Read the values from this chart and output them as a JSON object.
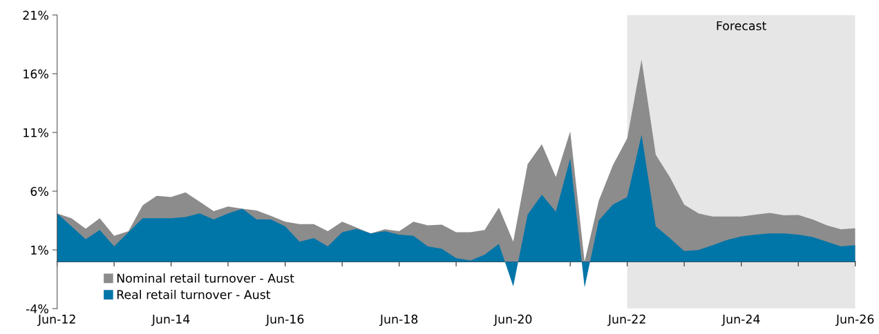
{
  "chart_data": {
    "type": "area",
    "x": [
      "2012-06",
      "2012-09",
      "2012-12",
      "2013-03",
      "2013-06",
      "2013-09",
      "2013-12",
      "2014-03",
      "2014-06",
      "2014-09",
      "2014-12",
      "2015-03",
      "2015-06",
      "2015-09",
      "2015-12",
      "2016-03",
      "2016-06",
      "2016-09",
      "2016-12",
      "2017-03",
      "2017-06",
      "2017-09",
      "2017-12",
      "2018-03",
      "2018-06",
      "2018-09",
      "2018-12",
      "2019-03",
      "2019-06",
      "2019-09",
      "2019-12",
      "2020-03",
      "2020-06",
      "2020-09",
      "2020-12",
      "2021-03",
      "2021-06",
      "2021-09",
      "2021-12",
      "2022-03",
      "2022-06",
      "2022-09",
      "2022-12",
      "2023-03",
      "2023-06",
      "2023-09",
      "2023-12",
      "2024-03",
      "2024-06",
      "2024-09",
      "2024-12",
      "2025-03",
      "2025-06",
      "2025-09",
      "2025-12",
      "2026-03",
      "2026-06"
    ],
    "series": [
      {
        "name": "Nominal retail turnover - Aust",
        "color": "#8c8c8c",
        "values": [
          4.1,
          3.7,
          2.8,
          3.7,
          2.2,
          2.6,
          4.8,
          5.6,
          5.5,
          5.9,
          5.1,
          4.3,
          4.7,
          4.5,
          4.35,
          3.9,
          3.4,
          3.2,
          3.2,
          2.6,
          3.4,
          2.9,
          2.4,
          2.75,
          2.6,
          3.4,
          3.1,
          3.15,
          2.5,
          2.5,
          2.7,
          4.6,
          1.7,
          8.3,
          10.0,
          7.2,
          11.1,
          0.0,
          5.2,
          8.2,
          10.5,
          17.2,
          9.1,
          7.2,
          4.85,
          4.1,
          3.85,
          3.85,
          3.85,
          4.0,
          4.15,
          3.95,
          3.97,
          3.6,
          3.1,
          2.75,
          2.85
        ]
      },
      {
        "name": "Real retail turnover - Aust",
        "color": "#0075a8",
        "values": [
          4.1,
          3.0,
          1.9,
          2.7,
          1.3,
          2.5,
          3.7,
          3.7,
          3.7,
          3.8,
          4.1,
          3.6,
          4.1,
          4.5,
          3.6,
          3.6,
          3.0,
          1.7,
          2.0,
          1.3,
          2.5,
          2.8,
          2.4,
          2.6,
          2.3,
          2.2,
          1.3,
          1.1,
          0.3,
          0.1,
          0.6,
          1.5,
          -2.1,
          4.0,
          5.7,
          4.25,
          8.8,
          -2.2,
          3.5,
          4.85,
          5.5,
          10.8,
          3.0,
          2.0,
          0.9,
          1.0,
          1.4,
          1.85,
          2.15,
          2.3,
          2.4,
          2.4,
          2.3,
          2.1,
          1.7,
          1.3,
          1.4
        ]
      }
    ],
    "xlim": [
      "2012-06",
      "2026-06"
    ],
    "xticks": [
      {
        "value": "2012-06",
        "label": "Jun-12"
      },
      {
        "value": "2013-06",
        "label": null
      },
      {
        "value": "2014-06",
        "label": "Jun-14"
      },
      {
        "value": "2015-06",
        "label": null
      },
      {
        "value": "2016-06",
        "label": "Jun-16"
      },
      {
        "value": "2017-06",
        "label": null
      },
      {
        "value": "2018-06",
        "label": "Jun-18"
      },
      {
        "value": "2019-06",
        "label": null
      },
      {
        "value": "2020-06",
        "label": "Jun-20"
      },
      {
        "value": "2021-06",
        "label": null
      },
      {
        "value": "2022-06",
        "label": "Jun-22"
      },
      {
        "value": "2023-06",
        "label": null
      },
      {
        "value": "2024-06",
        "label": "Jun-24"
      },
      {
        "value": "2025-06",
        "label": null
      },
      {
        "value": "2026-06",
        "label": "Jun-26"
      }
    ],
    "ylim": [
      -4,
      21
    ],
    "yticks": [
      {
        "value": -4,
        "label": "-4%"
      },
      {
        "value": 1,
        "label": "1%"
      },
      {
        "value": 6,
        "label": "6%"
      },
      {
        "value": 11,
        "label": "11%"
      },
      {
        "value": 16,
        "label": "16%"
      },
      {
        "value": 21,
        "label": "21%"
      }
    ],
    "bands": [
      {
        "axis": "x",
        "from": "2022-06",
        "to": "2026-06",
        "label": "Forecast",
        "color": "#e6e6e6"
      }
    ],
    "grid": false,
    "legend": "bottom left"
  }
}
